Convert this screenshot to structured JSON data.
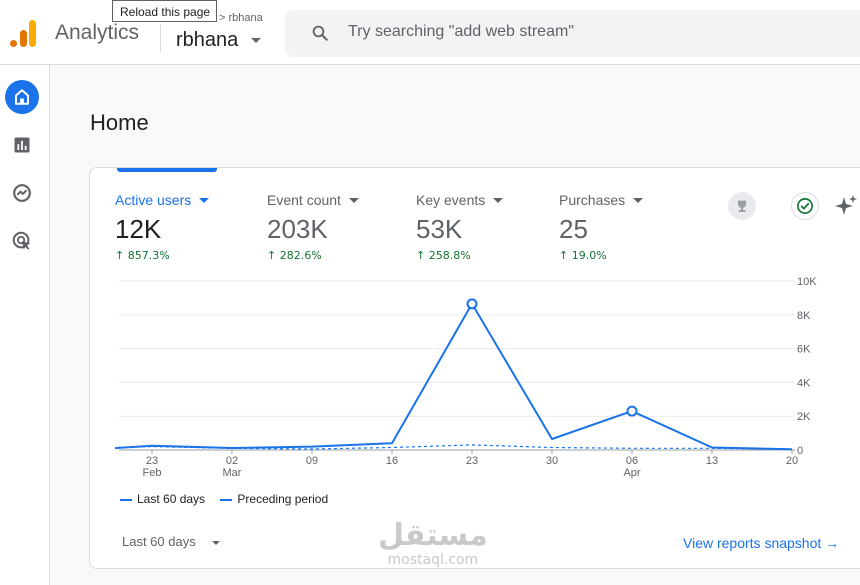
{
  "header": {
    "app_name": "Analytics",
    "tooltip": "Reload this page",
    "breadcrumb": "> rbhana",
    "account": "rbhana",
    "search_placeholder": "Try searching \"add web stream\""
  },
  "nav": {
    "items": [
      "home",
      "reports",
      "explore",
      "advertising"
    ]
  },
  "main": {
    "title": "Home"
  },
  "metrics": [
    {
      "label": "Active users",
      "value": "12K",
      "change": "↑ 857.3%"
    },
    {
      "label": "Event count",
      "value": "203K",
      "change": "↑ 282.6%"
    },
    {
      "label": "Key events",
      "value": "53K",
      "change": "↑ 258.8%"
    },
    {
      "label": "Purchases",
      "value": "25",
      "change": "↑ 19.0%"
    }
  ],
  "legend": {
    "current": "Last 60 days",
    "previous": "Preceding period"
  },
  "footer": {
    "range": "Last 60 days",
    "link": "View reports snapshot →"
  },
  "watermark": {
    "arabic": "مستقل",
    "latin": "mostaql.com"
  },
  "colors": {
    "accent": "#1a73e8",
    "positive": "#137333"
  },
  "chart_data": {
    "type": "line",
    "x_ticks": [
      {
        "day": "23",
        "month": "Feb"
      },
      {
        "day": "02",
        "month": "Mar"
      },
      {
        "day": "09",
        "month": ""
      },
      {
        "day": "16",
        "month": ""
      },
      {
        "day": "23",
        "month": ""
      },
      {
        "day": "30",
        "month": ""
      },
      {
        "day": "06",
        "month": "Apr"
      },
      {
        "day": "13",
        "month": ""
      },
      {
        "day": "20",
        "month": ""
      }
    ],
    "y_ticks": [
      "0",
      "2K",
      "4K",
      "6K",
      "8K",
      "10K"
    ],
    "ylim": [
      0,
      10000
    ],
    "series": [
      {
        "name": "Last 60 days",
        "style": "solid",
        "x": [
          -0.5,
          0,
          1,
          2,
          3,
          4,
          5,
          6,
          7,
          8
        ],
        "values": [
          100,
          250,
          120,
          200,
          400,
          8650,
          650,
          2300,
          150,
          40
        ],
        "markers": [
          5,
          7
        ]
      },
      {
        "name": "Preceding period",
        "style": "dashed",
        "x": [
          -0.5,
          0,
          1,
          2,
          3,
          4,
          5,
          6,
          7,
          8
        ],
        "values": [
          150,
          200,
          100,
          60,
          150,
          300,
          150,
          100,
          100,
          50
        ]
      }
    ],
    "grid": true,
    "legend_position": "bottom-left"
  }
}
